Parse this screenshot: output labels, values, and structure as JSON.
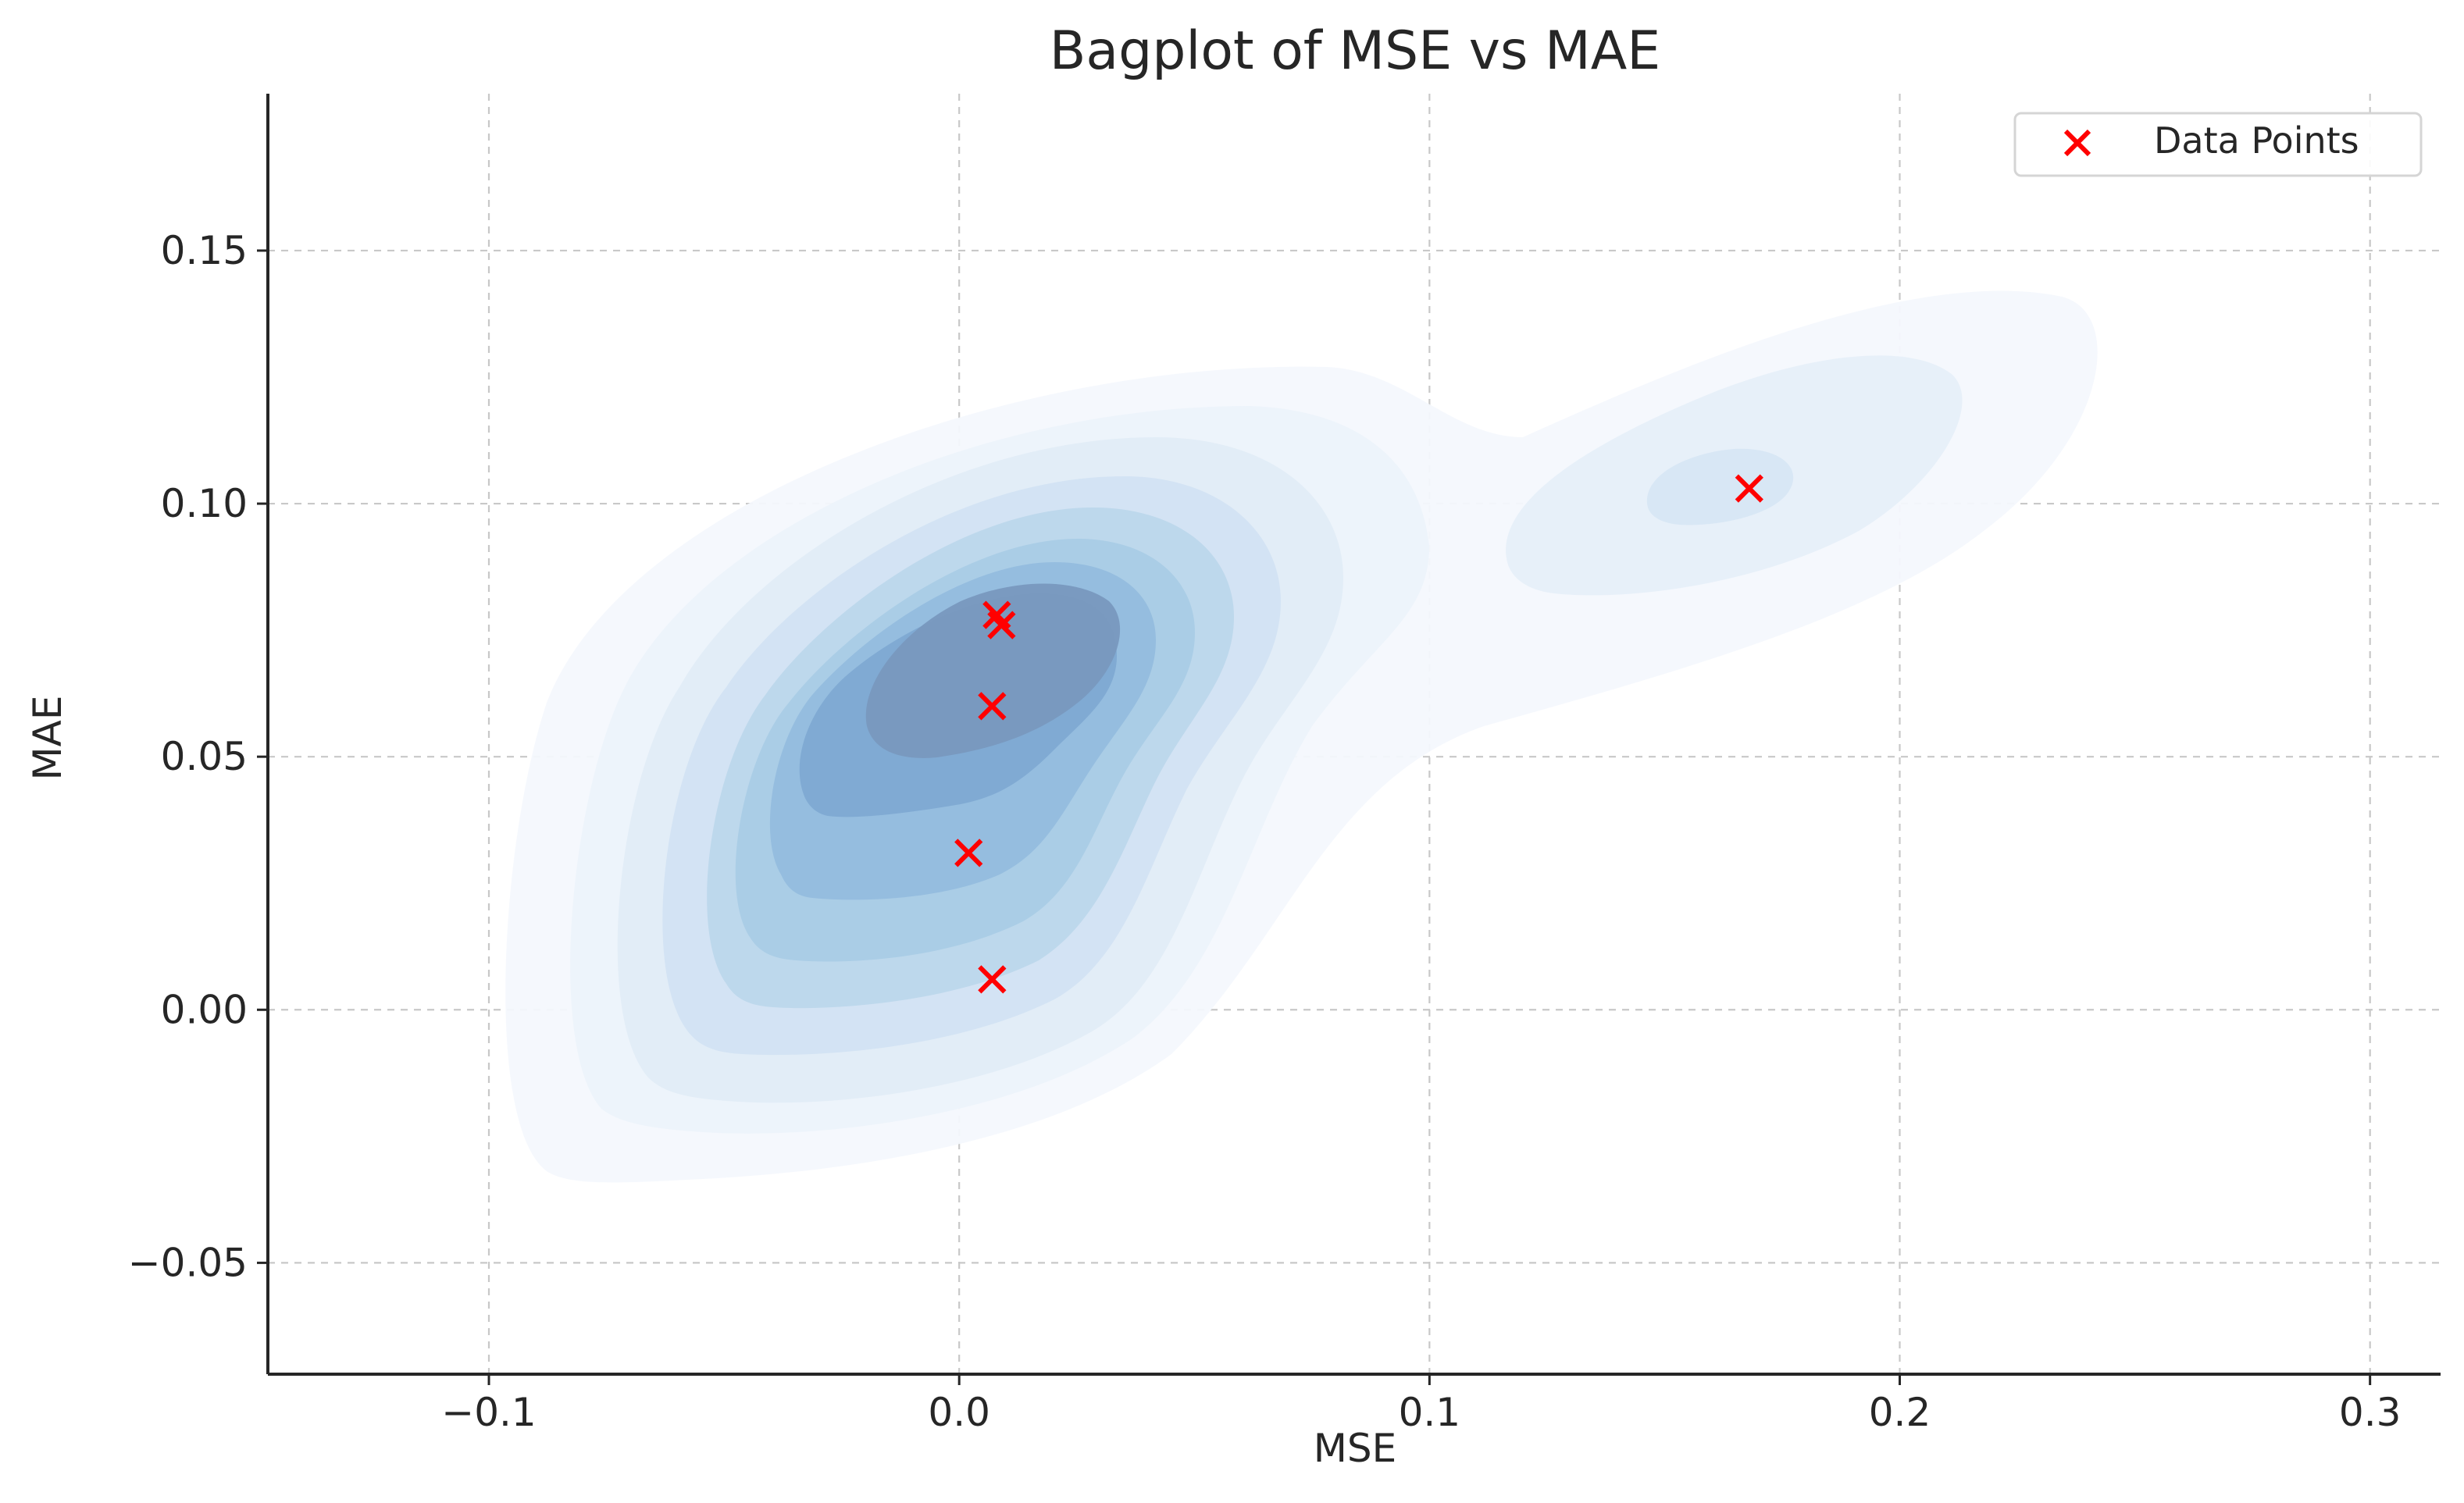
{
  "chart_data": {
    "type": "scatter",
    "title": "Bagplot of MSE vs MAE",
    "xlabel": "MSE",
    "ylabel": "MAE",
    "xlim": [
      -0.147,
      0.315
    ],
    "ylim": [
      -0.072,
      0.181
    ],
    "xticks": [
      -0.1,
      0.0,
      0.1,
      0.2,
      0.3
    ],
    "xtick_labels": [
      "−0.1",
      "0.0",
      "0.1",
      "0.2",
      "0.3"
    ],
    "yticks": [
      -0.05,
      0.0,
      0.05,
      0.1,
      0.15
    ],
    "ytick_labels": [
      "−0.05",
      "0.00",
      "0.05",
      "0.10",
      "0.15"
    ],
    "grid": true,
    "legend_position": "top-right",
    "series": [
      {
        "name": "Data Points",
        "marker": "x",
        "color": "#ff0000",
        "points": [
          {
            "x": 0.008,
            "y": 0.078
          },
          {
            "x": 0.009,
            "y": 0.076
          },
          {
            "x": 0.007,
            "y": 0.06
          },
          {
            "x": 0.002,
            "y": 0.031
          },
          {
            "x": 0.007,
            "y": 0.006
          },
          {
            "x": 0.168,
            "y": 0.103
          }
        ]
      }
    ],
    "density_contours": {
      "colormap": "Blues",
      "levels": 9
    }
  }
}
